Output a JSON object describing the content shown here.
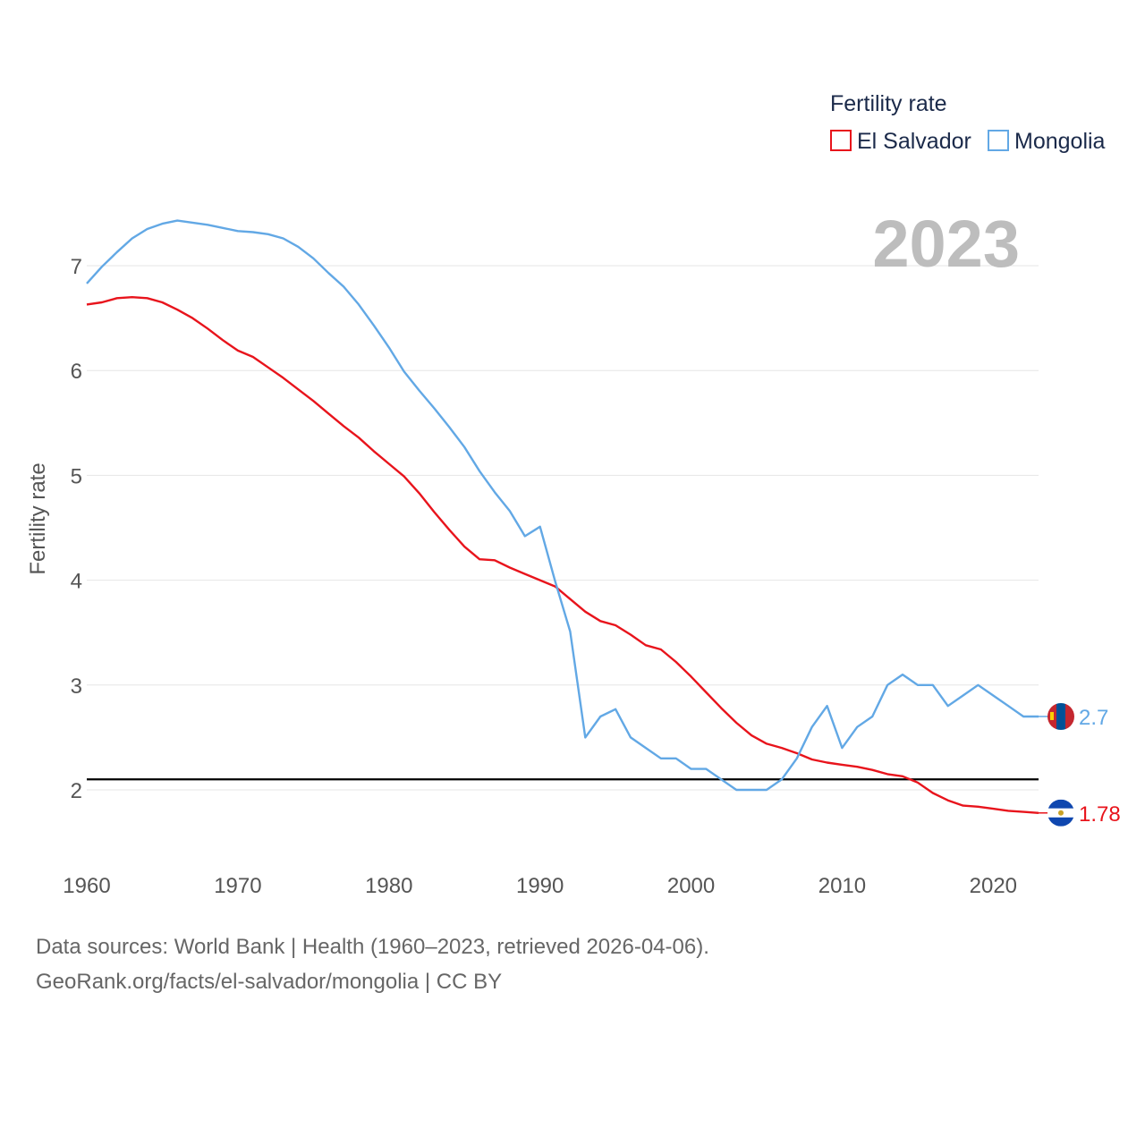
{
  "chart_data": {
    "type": "line",
    "title": "Fertility rate",
    "ylabel": "Fertility rate",
    "xlabel": "",
    "year_label": "2023",
    "xlim": [
      1960,
      2023
    ],
    "ylim": [
      1.35,
      7.6
    ],
    "x_ticks": [
      1960,
      1970,
      1980,
      1990,
      2000,
      2010,
      2020
    ],
    "y_ticks": [
      2,
      3,
      4,
      5,
      6,
      7
    ],
    "reference_line": 2.1,
    "x": [
      1960,
      1961,
      1962,
      1963,
      1964,
      1965,
      1966,
      1967,
      1968,
      1969,
      1970,
      1971,
      1972,
      1973,
      1974,
      1975,
      1976,
      1977,
      1978,
      1979,
      1980,
      1981,
      1982,
      1983,
      1984,
      1985,
      1986,
      1987,
      1988,
      1989,
      1990,
      1991,
      1992,
      1993,
      1994,
      1995,
      1996,
      1997,
      1998,
      1999,
      2000,
      2001,
      2002,
      2003,
      2004,
      2005,
      2006,
      2007,
      2008,
      2009,
      2010,
      2011,
      2012,
      2013,
      2014,
      2015,
      2016,
      2017,
      2018,
      2019,
      2020,
      2021,
      2022,
      2023
    ],
    "series": [
      {
        "name": "El Salvador",
        "color": "#e8141c",
        "end_label": "1.78",
        "flag": "el-salvador-flag-icon",
        "values": [
          6.63,
          6.65,
          6.69,
          6.7,
          6.69,
          6.65,
          6.58,
          6.5,
          6.4,
          6.29,
          6.19,
          6.13,
          6.03,
          5.93,
          5.82,
          5.71,
          5.59,
          5.47,
          5.36,
          5.23,
          5.11,
          4.99,
          4.83,
          4.65,
          4.48,
          4.32,
          4.2,
          4.19,
          4.12,
          4.06,
          4.0,
          3.94,
          3.82,
          3.7,
          3.61,
          3.57,
          3.48,
          3.38,
          3.34,
          3.22,
          3.08,
          2.93,
          2.78,
          2.64,
          2.52,
          2.44,
          2.4,
          2.35,
          2.29,
          2.26,
          2.24,
          2.22,
          2.19,
          2.15,
          2.13,
          2.07,
          1.97,
          1.9,
          1.85,
          1.84,
          1.82,
          1.8,
          1.79,
          1.78
        ]
      },
      {
        "name": "Mongolia",
        "color": "#62a8e5",
        "end_label": "2.7",
        "flag": "mongolia-flag-icon",
        "values": [
          6.83,
          6.99,
          7.13,
          7.26,
          7.35,
          7.4,
          7.43,
          7.41,
          7.39,
          7.36,
          7.33,
          7.32,
          7.3,
          7.26,
          7.18,
          7.07,
          6.93,
          6.8,
          6.63,
          6.43,
          6.22,
          5.99,
          5.81,
          5.64,
          5.46,
          5.27,
          5.04,
          4.84,
          4.66,
          4.42,
          4.51,
          3.99,
          3.51,
          2.5,
          2.7,
          2.77,
          2.5,
          2.4,
          2.3,
          2.3,
          2.2,
          2.2,
          2.1,
          2.0,
          2.0,
          2.0,
          2.1,
          2.3,
          2.6,
          2.8,
          2.4,
          2.6,
          2.7,
          3.0,
          3.1,
          3.0,
          3.0,
          2.8,
          2.9,
          3.0,
          2.9,
          2.8,
          2.7,
          2.7
        ]
      }
    ]
  },
  "legend": {
    "title": "Fertility rate",
    "items": [
      {
        "label": "El Salvador",
        "color": "#e8141c"
      },
      {
        "label": "Mongolia",
        "color": "#62a8e5"
      }
    ]
  },
  "footer": {
    "line1": "Data sources: World Bank | Health (1960–2023, retrieved 2026-04-06).",
    "line2": "GeoRank.org/facts/el-salvador/mongolia | CC BY"
  }
}
